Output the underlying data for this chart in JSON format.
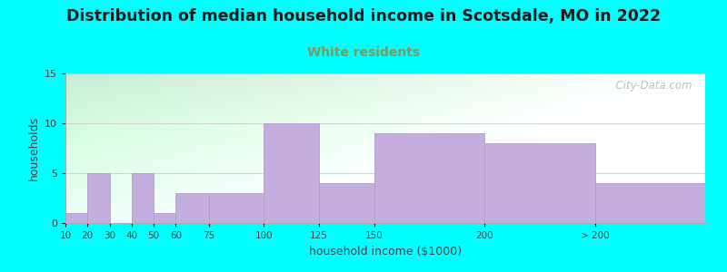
{
  "title": "Distribution of median household income in Scotsdale, MO in 2022",
  "subtitle": "White residents",
  "xlabel": "household income ($1000)",
  "ylabel": "households",
  "background_color": "#00FFFF",
  "bar_color": "#c4aee0",
  "bar_edge_color": "#b09ccc",
  "title_fontsize": 12.5,
  "subtitle_fontsize": 10,
  "subtitle_color": "#7a9a60",
  "labels": [
    "10",
    "20",
    "30",
    "40",
    "50",
    "60",
    "75",
    "100",
    "125",
    "150",
    "200",
    "> 200"
  ],
  "values": [
    1,
    5,
    0,
    5,
    1,
    3,
    3,
    10,
    4,
    9,
    8,
    4
  ],
  "positions": [
    10,
    20,
    30,
    40,
    50,
    60,
    75,
    100,
    125,
    150,
    200,
    250
  ],
  "widths": [
    10,
    10,
    10,
    10,
    10,
    15,
    25,
    25,
    25,
    50,
    50,
    50
  ],
  "xlim": [
    10,
    300
  ],
  "ylim": [
    0,
    15
  ],
  "yticks": [
    0,
    5,
    10,
    15
  ],
  "watermark": "  City-Data.com"
}
